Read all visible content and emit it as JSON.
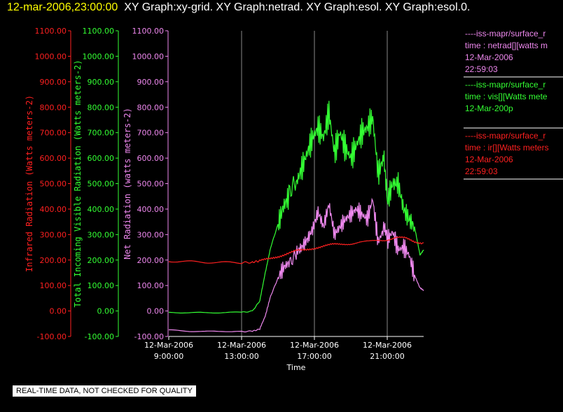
{
  "header": {
    "date": "12-mar-2006,23:00:00",
    "graphs": "XY Graph:xy-grid.  XY Graph:netrad.  XY Graph:esol.  XY Graph:esol.0."
  },
  "colors": {
    "infrared": "#ff2020",
    "visible": "#33ff33",
    "net": "#ee88ee",
    "axis": "#ffffff",
    "grid": "#888888"
  },
  "chart_data": {
    "type": "line",
    "xlabel": "Time",
    "xticks": [
      {
        "hours": 9,
        "line1": "12-Mar-2006",
        "line2": "9:00:00"
      },
      {
        "hours": 13,
        "line1": "12-Mar-2006",
        "line2": "13:00:00"
      },
      {
        "hours": 17,
        "line1": "12-Mar-2006",
        "line2": "17:00:00"
      },
      {
        "hours": 21,
        "line1": "12-Mar-2006",
        "line2": "21:00:00"
      }
    ],
    "xlim": [
      9.0,
      23.0
    ],
    "axes": [
      {
        "key": "infrared",
        "label": "Infrared Radiation (Watts meters-2)",
        "ylim": [
          -100,
          1100
        ],
        "ticks": [
          "1100.00",
          "1000.00",
          "900.00",
          "800.00",
          "700.00",
          "600.00",
          "500.00",
          "400.00",
          "300.00",
          "200.00",
          "100.00",
          "0.00",
          "-100.00"
        ]
      },
      {
        "key": "visible",
        "label": "Total Incoming Visible Radiation (Watts meters-2)",
        "ylim": [
          -100,
          1100
        ],
        "ticks": [
          "1100.00",
          "1000.00",
          "900.00",
          "800.00",
          "700.00",
          "600.00",
          "500.00",
          "400.00",
          "300.00",
          "200.00",
          "100.00",
          "0.00",
          "-100.00"
        ]
      },
      {
        "key": "net",
        "label": "Net Radiation (watts meters-2)",
        "ylim": [
          -100,
          1100
        ],
        "ticks": [
          "1100.00",
          "1000.00",
          "900.00",
          "800.00",
          "700.00",
          "600.00",
          "500.00",
          "400.00",
          "300.00",
          "200.00",
          "100.00",
          "0.00",
          "-100.00"
        ]
      }
    ],
    "ylim": [
      -100,
      1100
    ],
    "series": [
      {
        "key": "net",
        "x": [
          9.0,
          10.0,
          11.0,
          12.0,
          13.0,
          13.6,
          14.0,
          14.3,
          14.6,
          15.0,
          15.3,
          15.6,
          16.0,
          16.3,
          16.6,
          16.9,
          17.2,
          17.5,
          17.8,
          18.1,
          18.4,
          18.7,
          19.0,
          19.3,
          19.6,
          19.9,
          20.2,
          20.5,
          20.8,
          21.0,
          21.3,
          21.6,
          21.9,
          22.2,
          22.5,
          22.8,
          23.0
        ],
        "values": [
          -75,
          -78,
          -80,
          -78,
          -80,
          -78,
          -70,
          -20,
          60,
          130,
          170,
          190,
          230,
          250,
          280,
          320,
          390,
          330,
          420,
          300,
          330,
          360,
          380,
          400,
          380,
          360,
          440,
          270,
          320,
          280,
          310,
          240,
          250,
          220,
          140,
          90,
          80
        ]
      },
      {
        "key": "visible",
        "x": [
          9.0,
          10.0,
          11.0,
          12.0,
          13.0,
          13.6,
          14.0,
          14.3,
          14.6,
          15.0,
          15.3,
          15.6,
          16.0,
          16.3,
          16.6,
          16.9,
          17.2,
          17.5,
          17.8,
          18.1,
          18.4,
          18.7,
          19.0,
          19.3,
          19.6,
          19.9,
          20.2,
          20.5,
          20.8,
          21.0,
          21.3,
          21.6,
          21.9,
          22.2,
          22.5,
          22.8,
          23.0
        ],
        "values": [
          -5,
          -5,
          -6,
          -5,
          -5,
          0,
          40,
          150,
          250,
          340,
          410,
          450,
          500,
          560,
          620,
          680,
          720,
          680,
          780,
          620,
          700,
          640,
          600,
          650,
          700,
          720,
          760,
          540,
          600,
          430,
          500,
          500,
          400,
          360,
          330,
          220,
          240
        ]
      },
      {
        "key": "infrared",
        "x": [
          9.0,
          10.0,
          11.0,
          12.0,
          13.0,
          13.6,
          14.0,
          14.5,
          15.0,
          15.5,
          16.0,
          16.5,
          17.0,
          17.5,
          18.0,
          18.5,
          19.0,
          19.5,
          20.0,
          20.5,
          21.0,
          21.5,
          22.0,
          22.5,
          23.0
        ],
        "values": [
          198,
          195,
          192,
          190,
          188,
          190,
          195,
          205,
          215,
          225,
          235,
          240,
          248,
          255,
          260,
          262,
          265,
          270,
          272,
          278,
          280,
          288,
          285,
          272,
          268
        ]
      }
    ],
    "legend": [
      {
        "key": "net",
        "lines": [
          "----iss-mapr/surface_r",
          "time : netrad[][watts m",
          "12-Mar-2006",
          "22:59:03"
        ]
      },
      {
        "key": "visible",
        "lines": [
          "----iss-mapr/surface_r",
          "time : vis[][Watts mete",
          "12-Mar-200p"
        ]
      },
      {
        "key": "infrared",
        "lines": [
          "----iss-mapr/surface_r",
          "time : ir[][Watts meters",
          "12-Mar-2006",
          "22:59:03"
        ]
      }
    ]
  },
  "footer": {
    "note": "REAL-TIME DATA, NOT CHECKED FOR QUALITY"
  }
}
